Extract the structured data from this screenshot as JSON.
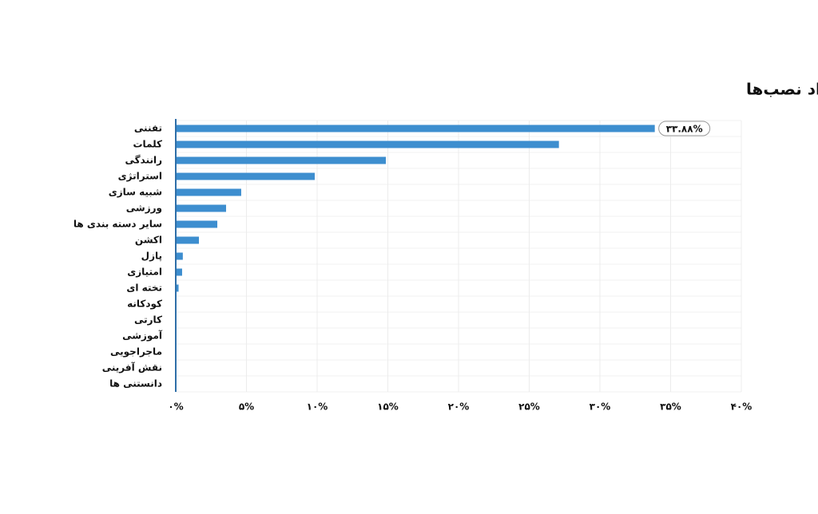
{
  "chart_data": {
    "type": "barh",
    "title": "سهم هر دسته از مجموع تعداد نصب‌ها",
    "categories": [
      "تفننی",
      "کلمات",
      "رانندگی",
      "استراتژی",
      "شبیه سازی",
      "ورزشی",
      "سایر دسته بندی ها",
      "اکشن",
      "پازل",
      "امتیازی",
      "تخته ای",
      "کودکانه",
      "کارتی",
      "آموزشی",
      "ماجراجویی",
      "نقش آفرینی",
      "دانستنی ها"
    ],
    "values": [
      33.88,
      27.1,
      14.86,
      9.83,
      4.63,
      3.56,
      2.94,
      1.64,
      0.5,
      0.45,
      0.2,
      0,
      0,
      0,
      0,
      0,
      0
    ],
    "value_labels": [
      "۳۳.۸۸%",
      null,
      null,
      null,
      null,
      null,
      null,
      null,
      null,
      null,
      null,
      null,
      null,
      null,
      null,
      null,
      null
    ],
    "color": "#3d8ecf",
    "xlim": [
      0,
      40
    ],
    "xticks": [
      {
        "value": 0,
        "label": "۰%"
      },
      {
        "value": 5,
        "label": "۵%"
      },
      {
        "value": 10,
        "label": "۱۰%"
      },
      {
        "value": 15,
        "label": "۱۵%"
      },
      {
        "value": 20,
        "label": "۲۰%"
      },
      {
        "value": 25,
        "label": "۲۵%"
      },
      {
        "value": 30,
        "label": "۳۰%"
      },
      {
        "value": 35,
        "label": "۳۵%"
      },
      {
        "value": 40,
        "label": "۴۰%"
      }
    ],
    "grid": true
  }
}
